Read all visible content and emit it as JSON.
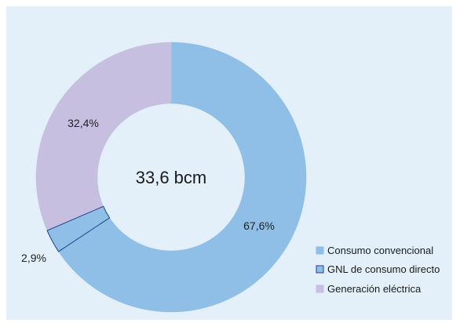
{
  "chart_data": {
    "type": "pie",
    "variant": "donut",
    "center_label": "33,6 bcm",
    "slices": [
      {
        "name": "Consumo convencional",
        "value": 67.6,
        "label": "67,6%",
        "color": "#8fbfe6",
        "stroke": "#8fbfe6"
      },
      {
        "name": "GNL de consumo directo",
        "value": 2.9,
        "label": "2,9%",
        "color": "#8fbfe6",
        "stroke": "#1f3f8a"
      },
      {
        "name": "Generación eléctrica",
        "value": 32.4,
        "label": "32,4%",
        "color": "#c7bfdf",
        "stroke": "#c7bfdf"
      }
    ],
    "legend_position": "bottom-right",
    "legend": [
      {
        "label": "Consumo convencional",
        "color": "#8fbfe6",
        "stroke": "#8fbfe6"
      },
      {
        "label": "GNL de consumo directo",
        "color": "#8fbfe6",
        "stroke": "#1f3f8a"
      },
      {
        "label": "Generación eléctrica",
        "color": "#c7bfdf",
        "stroke": "#c7bfdf"
      }
    ]
  },
  "colors": {
    "background": "#e3f0f9"
  }
}
